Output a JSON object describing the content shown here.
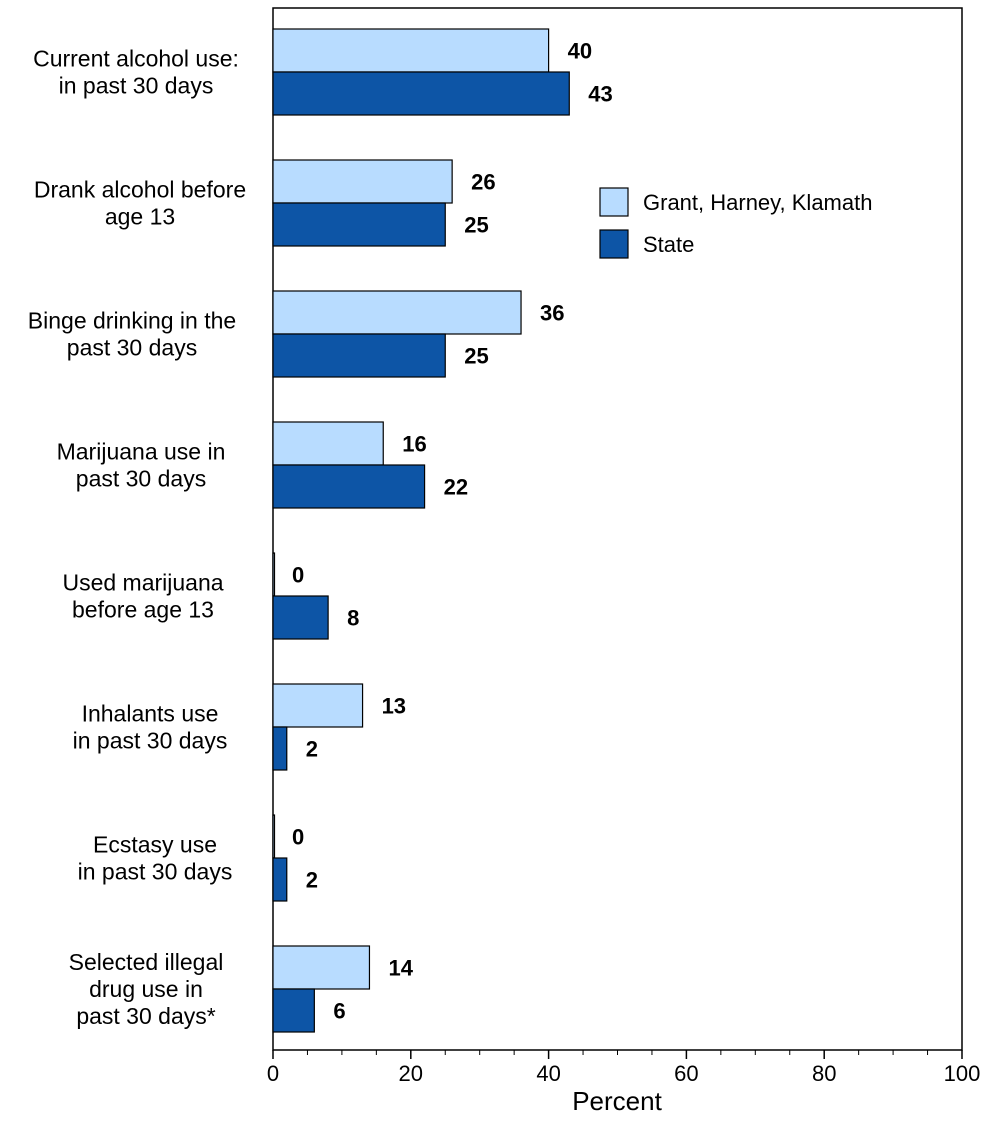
{
  "chart_data": {
    "type": "bar",
    "orientation": "horizontal",
    "title": "",
    "xlabel": "Percent",
    "ylabel": "",
    "xlim": [
      0,
      100
    ],
    "x_ticks": [
      "0",
      "20",
      "40",
      "60",
      "80",
      "100"
    ],
    "grid": false,
    "legend_position": "top-right",
    "categories": [
      [
        "Current alcohol use:",
        "in past 30 days"
      ],
      [
        "Drank alcohol before",
        "age 13"
      ],
      [
        "Binge drinking in the",
        "past 30 days"
      ],
      [
        "Marijuana use in",
        "past 30 days"
      ],
      [
        "Used marijuana",
        "before age 13"
      ],
      [
        "Inhalants use",
        "in past 30 days"
      ],
      [
        "Ecstasy use",
        "in past 30 days"
      ],
      [
        "Selected illegal",
        "drug use in",
        "past 30 days*"
      ]
    ],
    "series": [
      {
        "name": "Grant, Harney, Klamath",
        "color": "#b8dcff",
        "values": [
          40,
          26,
          36,
          16,
          0,
          13,
          0,
          14
        ]
      },
      {
        "name": "State",
        "color": "#0d55a6",
        "values": [
          43,
          25,
          25,
          22,
          8,
          2,
          2,
          6
        ]
      }
    ]
  }
}
